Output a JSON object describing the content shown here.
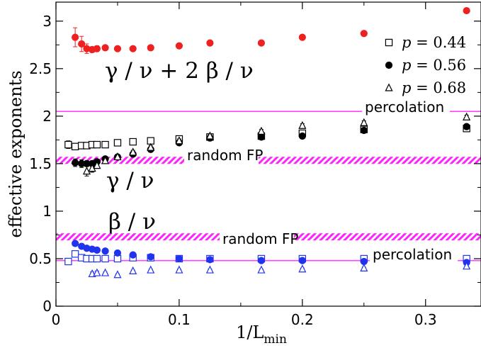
{
  "chart_data": {
    "type": "scatter",
    "title": "",
    "xlabel": {
      "main": "1/L",
      "sub": "min"
    },
    "ylabel": "effective exponents",
    "xlim": [
      0,
      0.345
    ],
    "ylim": [
      0,
      3.2
    ],
    "xticks": [
      0,
      0.1,
      0.2,
      0.3
    ],
    "xtick_labels": [
      "0",
      "0.1",
      "0.2",
      "0.3"
    ],
    "yticks": [
      0,
      0.5,
      1,
      1.5,
      2,
      2.5,
      3
    ],
    "ytick_labels": [
      "0",
      "0.5",
      "1",
      "1.5",
      "2",
      "2.5",
      "3"
    ],
    "legend": {
      "position": "top-right",
      "entries": [
        {
          "label_var": "p",
          "label_rest": " = 0.44",
          "marker": "square-open"
        },
        {
          "label_var": "p",
          "label_rest": " = 0.56",
          "marker": "circle-filled"
        },
        {
          "label_var": "p",
          "label_rest": " = 0.68",
          "marker": "triangle-open"
        }
      ]
    },
    "reference_lines": [
      {
        "y": 2.05,
        "color": "#ff44ff",
        "style": "thin",
        "label": "percolation"
      },
      {
        "y": 0.48,
        "color": "#ff44ff",
        "style": "thin",
        "label": "percolation"
      },
      {
        "y": 1.535,
        "color": "#ff22ff",
        "style": "hatched",
        "label": "random FP"
      },
      {
        "y": 0.73,
        "color": "#ff22ff",
        "style": "hatched",
        "label": "random FP"
      }
    ],
    "annotations": [
      {
        "text": "γ / ν + 2 β / ν",
        "size": "big"
      },
      {
        "text": "γ / ν",
        "size": "big"
      },
      {
        "text": "β / ν",
        "size": "big"
      }
    ],
    "series": [
      {
        "color": "#ee2020",
        "marker": "circle-filled",
        "points": [
          [
            0.0156,
            2.83
          ],
          [
            0.0208,
            2.76
          ],
          [
            0.025,
            2.71
          ],
          [
            0.0294,
            2.7
          ],
          [
            0.0333,
            2.71
          ],
          [
            0.04,
            2.72
          ],
          [
            0.05,
            2.71
          ],
          [
            0.0625,
            2.71
          ],
          [
            0.0769,
            2.72
          ],
          [
            0.1,
            2.74
          ],
          [
            0.125,
            2.77
          ],
          [
            0.1667,
            2.77
          ],
          [
            0.2,
            2.83
          ],
          [
            0.25,
            2.87
          ],
          [
            0.3333,
            3.11
          ]
        ],
        "errors": [
          0.1,
          0.08,
          0.05,
          0.03,
          0.03,
          0.02,
          0.02,
          0.02,
          0.02,
          0.02,
          0.02,
          0.02,
          0.02,
          0.02,
          0.02
        ]
      },
      {
        "color": "#000000",
        "marker": "square-open",
        "points": [
          [
            0.01,
            1.7
          ],
          [
            0.0156,
            1.68
          ],
          [
            0.0208,
            1.69
          ],
          [
            0.025,
            1.69
          ],
          [
            0.0294,
            1.7
          ],
          [
            0.0333,
            1.7
          ],
          [
            0.04,
            1.7
          ],
          [
            0.05,
            1.72
          ],
          [
            0.0625,
            1.73
          ],
          [
            0.0769,
            1.74
          ],
          [
            0.1,
            1.76
          ],
          [
            0.125,
            1.78
          ],
          [
            0.1667,
            1.79
          ],
          [
            0.2,
            1.82
          ],
          [
            0.25,
            1.86
          ],
          [
            0.3333,
            1.87
          ]
        ],
        "errors": [
          0.04,
          0.03,
          0.02,
          0.02,
          0.02,
          0.02,
          0.02,
          0.02,
          0.02,
          0.02,
          0.02,
          0.02,
          0.02,
          0.02,
          0.02,
          0.02
        ]
      },
      {
        "color": "#000000",
        "marker": "circle-filled",
        "points": [
          [
            0.0156,
            1.51
          ],
          [
            0.0208,
            1.5
          ],
          [
            0.025,
            1.5
          ],
          [
            0.0294,
            1.5
          ],
          [
            0.0333,
            1.52
          ],
          [
            0.04,
            1.55
          ],
          [
            0.05,
            1.57
          ],
          [
            0.0625,
            1.6
          ],
          [
            0.0769,
            1.65
          ],
          [
            0.1,
            1.72
          ],
          [
            0.125,
            1.77
          ],
          [
            0.1667,
            1.78
          ],
          [
            0.2,
            1.79
          ],
          [
            0.25,
            1.85
          ],
          [
            0.3333,
            1.89
          ]
        ],
        "errors": [
          0.04,
          0.04,
          0.03,
          0.03,
          0.02,
          0.02,
          0.02,
          0.02,
          0.02,
          0.02,
          0.02,
          0.02,
          0.02,
          0.02,
          0.02
        ]
      },
      {
        "color": "#000000",
        "marker": "triangle-open",
        "points": [
          [
            0.025,
            1.42
          ],
          [
            0.0294,
            1.45
          ],
          [
            0.0333,
            1.48
          ],
          [
            0.04,
            1.53
          ],
          [
            0.05,
            1.57
          ],
          [
            0.0625,
            1.62
          ],
          [
            0.0769,
            1.67
          ],
          [
            0.1,
            1.74
          ],
          [
            0.125,
            1.79
          ],
          [
            0.1667,
            1.84
          ],
          [
            0.2,
            1.9
          ],
          [
            0.25,
            1.93
          ],
          [
            0.3333,
            1.99
          ]
        ],
        "errors": [
          0.05,
          0.04,
          0.03,
          0.03,
          0.02,
          0.02,
          0.02,
          0.02,
          0.02,
          0.02,
          0.02,
          0.02,
          0.02
        ]
      },
      {
        "color": "#2233ee",
        "marker": "square-open",
        "points": [
          [
            0.01,
            0.47
          ],
          [
            0.0156,
            0.55
          ],
          [
            0.0208,
            0.51
          ],
          [
            0.025,
            0.5
          ],
          [
            0.0294,
            0.5
          ],
          [
            0.0333,
            0.5
          ],
          [
            0.04,
            0.5
          ],
          [
            0.05,
            0.5
          ],
          [
            0.0625,
            0.51
          ],
          [
            0.0769,
            0.51
          ],
          [
            0.1,
            0.5
          ],
          [
            0.125,
            0.5
          ],
          [
            0.1667,
            0.5
          ],
          [
            0.2,
            0.5
          ],
          [
            0.25,
            0.5
          ],
          [
            0.3333,
            0.5
          ]
        ],
        "errors": [
          0.02,
          0.02,
          0.02,
          0.01,
          0.01,
          0.01,
          0.01,
          0.01,
          0.01,
          0.01,
          0.01,
          0.01,
          0.01,
          0.01,
          0.01,
          0.01
        ]
      },
      {
        "color": "#2233ee",
        "marker": "circle-filled",
        "points": [
          [
            0.0156,
            0.66
          ],
          [
            0.0208,
            0.63
          ],
          [
            0.025,
            0.61
          ],
          [
            0.0294,
            0.6
          ],
          [
            0.0333,
            0.59
          ],
          [
            0.04,
            0.58
          ],
          [
            0.05,
            0.56
          ],
          [
            0.0625,
            0.54
          ],
          [
            0.0769,
            0.52
          ],
          [
            0.1,
            0.5
          ],
          [
            0.125,
            0.49
          ],
          [
            0.1667,
            0.48
          ],
          [
            0.2,
            0.48
          ],
          [
            0.25,
            0.47
          ],
          [
            0.3333,
            0.46
          ]
        ],
        "errors": [
          0.02,
          0.02,
          0.02,
          0.01,
          0.01,
          0.01,
          0.01,
          0.01,
          0.01,
          0.01,
          0.01,
          0.01,
          0.01,
          0.01,
          0.01
        ]
      },
      {
        "color": "#2233ee",
        "marker": "triangle-open",
        "points": [
          [
            0.0294,
            0.34
          ],
          [
            0.0333,
            0.35
          ],
          [
            0.04,
            0.35
          ],
          [
            0.05,
            0.33
          ],
          [
            0.0625,
            0.37
          ],
          [
            0.0769,
            0.38
          ],
          [
            0.1,
            0.38
          ],
          [
            0.125,
            0.38
          ],
          [
            0.1667,
            0.38
          ],
          [
            0.2,
            0.39
          ],
          [
            0.25,
            0.4
          ],
          [
            0.3333,
            0.42
          ]
        ],
        "errors": [
          0.02,
          0.02,
          0.01,
          0.01,
          0.01,
          0.01,
          0.01,
          0.01,
          0.01,
          0.01,
          0.01,
          0.01
        ]
      }
    ]
  }
}
